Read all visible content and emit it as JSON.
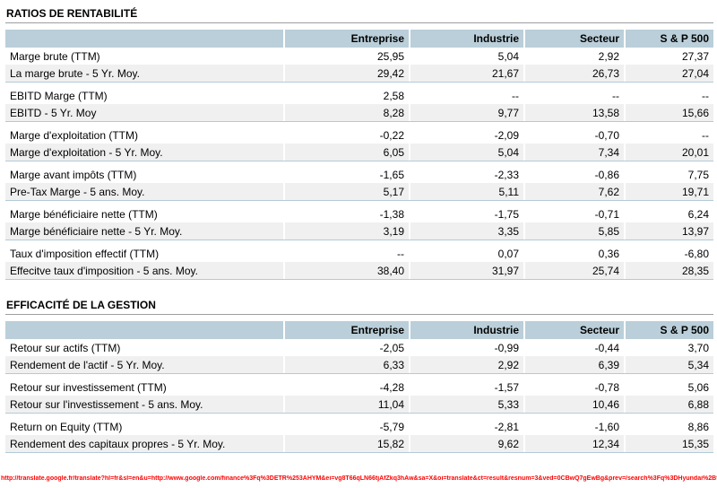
{
  "colors": {
    "header_bg": "#bacfd9",
    "row_alt_bg": "#f0f0f0",
    "group_divider": "#b2cad8",
    "title_rule": "#9e9e9e",
    "footer_url_color": "#ff0000"
  },
  "footer": {
    "url": "http://translate.google.fr/translate?hl=fr&sl=en&u=http://www.google.com/finance%3Fq%3DETR%253AHYM&ei=vg8T66qLN66tjAfZkq3hAw&sa=X&oi=translate&ct=result&resnum=3&ved=0CBwQ7gEwBg&prev=/search%3Fq%3DHyundai%2Bfinance%26hl%3Dfr%26client%3Dfirefox-a%26rls%3Dorg.mozilla:fr:official"
  },
  "sections": [
    {
      "title": "RATIOS DE RENTABILITÉ",
      "columns": [
        "Entreprise",
        "Industrie",
        "Secteur",
        "S & P 500"
      ],
      "groups": [
        [
          {
            "label": "Marge brute (TTM)",
            "values": [
              "25,95",
              "5,04",
              "2,92",
              "27,37"
            ]
          },
          {
            "label": "La marge brute - 5 Yr. Moy.",
            "values": [
              "29,42",
              "21,67",
              "26,73",
              "27,04"
            ]
          }
        ],
        [
          {
            "label": "EBITD Marge (TTM)",
            "values": [
              "2,58",
              "--",
              "--",
              "--"
            ]
          },
          {
            "label": "EBITD - 5 Yr. Moy",
            "values": [
              "8,28",
              "9,77",
              "13,58",
              "15,66"
            ]
          }
        ],
        [
          {
            "label": "Marge d'exploitation (TTM)",
            "values": [
              "-0,22",
              "-2,09",
              "-0,70",
              "--"
            ]
          },
          {
            "label": "Marge d'exploitation - 5 Yr. Moy.",
            "values": [
              "6,05",
              "5,04",
              "7,34",
              "20,01"
            ]
          }
        ],
        [
          {
            "label": "Marge avant impôts (TTM)",
            "values": [
              "-1,65",
              "-2,33",
              "-0,86",
              "7,75"
            ]
          },
          {
            "label": "Pre-Tax Marge - 5 ans. Moy.",
            "values": [
              "5,17",
              "5,11",
              "7,62",
              "19,71"
            ]
          }
        ],
        [
          {
            "label": "Marge bénéficiaire nette (TTM)",
            "values": [
              "-1,38",
              "-1,75",
              "-0,71",
              "6,24"
            ]
          },
          {
            "label": "Marge bénéficiaire nette - 5 Yr. Moy.",
            "values": [
              "3,19",
              "3,35",
              "5,85",
              "13,97"
            ]
          }
        ],
        [
          {
            "label": "Taux d'imposition effectif (TTM)",
            "values": [
              "--",
              "0,07",
              "0,36",
              "-6,80"
            ]
          },
          {
            "label": "Effecitve taux d'imposition - 5 ans. Moy.",
            "values": [
              "38,40",
              "31,97",
              "25,74",
              "28,35"
            ]
          }
        ]
      ]
    },
    {
      "title": "EFFICACITÉ DE LA GESTION",
      "columns": [
        "Entreprise",
        "Industrie",
        "Secteur",
        "S & P 500"
      ],
      "groups": [
        [
          {
            "label": "Retour sur actifs (TTM)",
            "values": [
              "-2,05",
              "-0,99",
              "-0,44",
              "3,70"
            ]
          },
          {
            "label": "Rendement de l'actif - 5 Yr. Moy.",
            "values": [
              "6,33",
              "2,92",
              "6,39",
              "5,34"
            ]
          }
        ],
        [
          {
            "label": "Retour sur investissement (TTM)",
            "values": [
              "-4,28",
              "-1,57",
              "-0,78",
              "5,06"
            ]
          },
          {
            "label": "Retour sur l'investissement - 5 ans. Moy.",
            "values": [
              "11,04",
              "5,33",
              "10,46",
              "6,88"
            ]
          }
        ],
        [
          {
            "label": "Return on Equity (TTM)",
            "values": [
              "-5,79",
              "-2,81",
              "-1,60",
              "8,86"
            ]
          },
          {
            "label": "Rendement des capitaux propres - 5 Yr. Moy.",
            "values": [
              "15,82",
              "9,62",
              "12,34",
              "15,35"
            ]
          }
        ]
      ]
    }
  ]
}
